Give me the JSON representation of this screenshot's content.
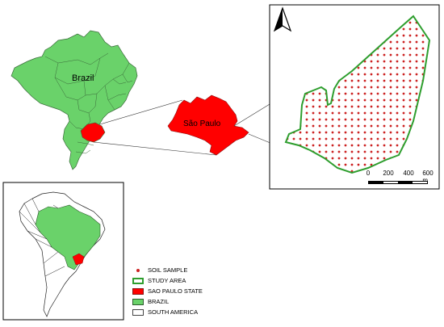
{
  "labels": {
    "brazil": "Brazil",
    "sao_paulo": "São Paulo"
  },
  "scale": {
    "ticks": [
      "0",
      "200",
      "400",
      "600 m"
    ]
  },
  "legend": [
    {
      "name": "legend-soil-sample",
      "label": "SOIL SAMPLE",
      "kind": "dot",
      "color": "#cc2222"
    },
    {
      "name": "legend-study-area",
      "label": "STUDY AREA",
      "kind": "outline",
      "color": "#2e9e2e"
    },
    {
      "name": "legend-sao-paulo-state",
      "label": "SAO PAULO STATE",
      "kind": "fill",
      "color": "#ff0000"
    },
    {
      "name": "legend-brazil",
      "label": "BRAZIL",
      "kind": "fill",
      "color": "#6ad26a"
    },
    {
      "name": "legend-south-america",
      "label": "SOUTH AMERICA",
      "kind": "fill",
      "color": "#ffffff"
    }
  ],
  "colors": {
    "brazil": "#6ad26a",
    "sao_paulo": "#ff0000",
    "study_area_outline": "#2e9e2e",
    "soil_sample": "#cc2222",
    "south_america": "#ffffff"
  },
  "icons": [
    "north-arrow-icon"
  ]
}
